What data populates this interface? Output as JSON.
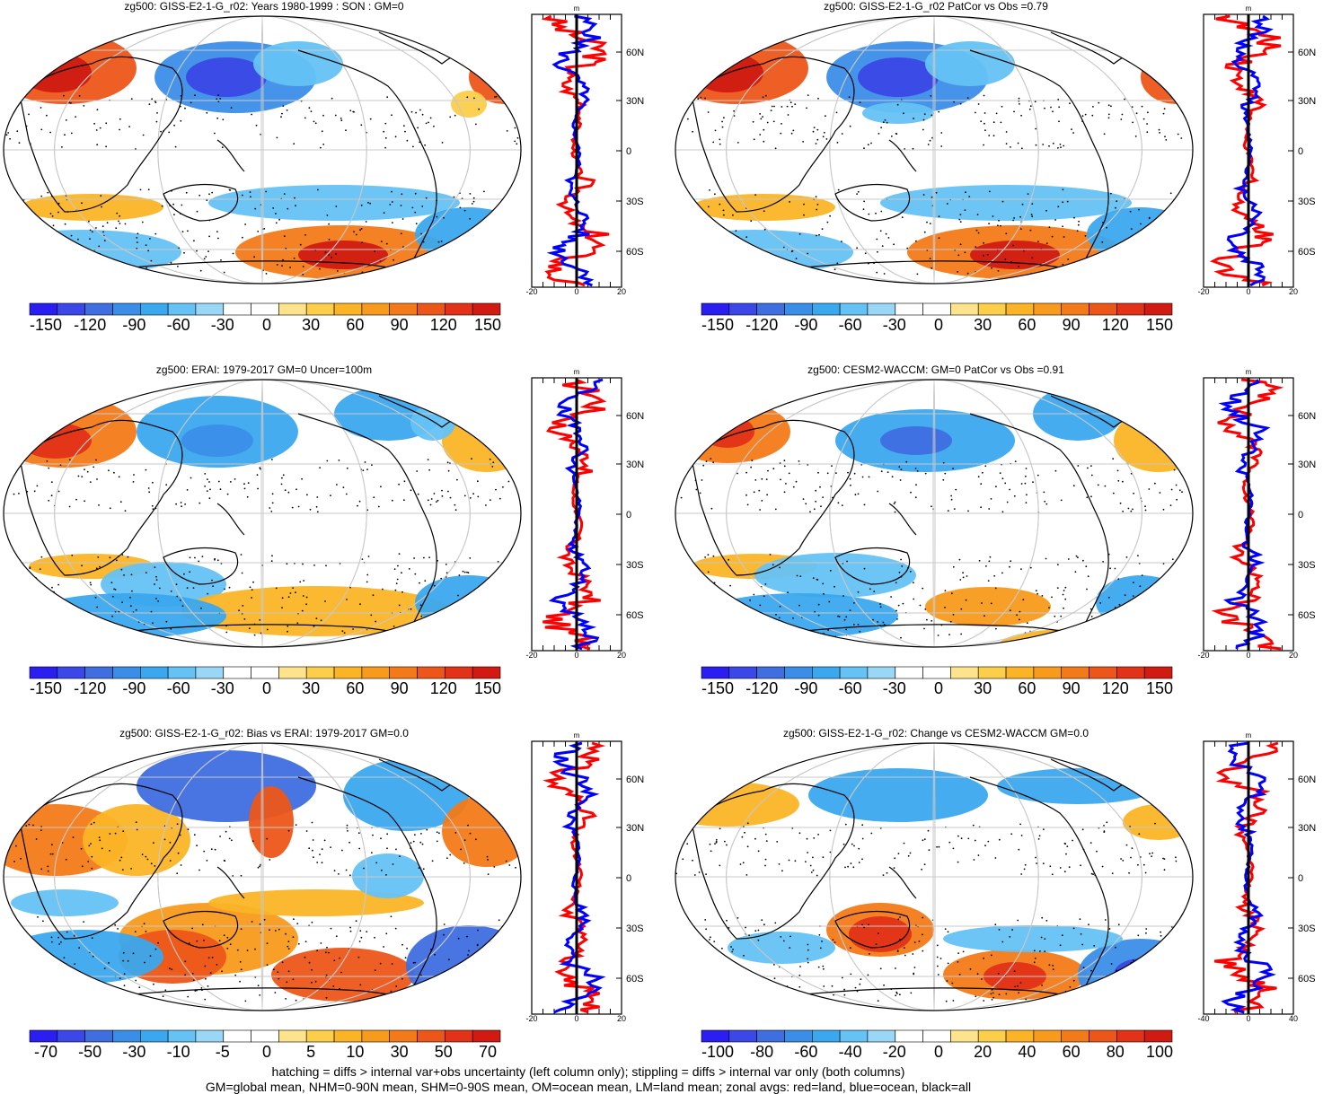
{
  "panels": [
    {
      "title": "zg500: GISS-E2-1-G_r02: Years 1980-1999 : SON : GM=0",
      "colorbar": [
        "-150",
        "-120",
        "-90",
        "-60",
        "-30",
        "0",
        "30",
        "60",
        "90",
        "120",
        "150"
      ],
      "profile_ticks": [
        "-20",
        "0",
        "20"
      ],
      "lat_labels": [
        "60N",
        "30N",
        "0",
        "30S",
        "60S"
      ],
      "unit": "m"
    },
    {
      "title": "zg500: GISS-E2-1-G_r02 PatCor vs Obs =0.79",
      "colorbar": [
        "-150",
        "-120",
        "-90",
        "-60",
        "-30",
        "0",
        "30",
        "60",
        "90",
        "120",
        "150"
      ],
      "profile_ticks": [
        "-20",
        "0",
        "20"
      ],
      "lat_labels": [
        "60N",
        "30N",
        "0",
        "30S",
        "60S"
      ],
      "unit": "m"
    },
    {
      "title": "zg500: ERAI: 1979-2017 GM=0 Uncer=100m",
      "colorbar": [
        "-150",
        "-120",
        "-90",
        "-60",
        "-30",
        "0",
        "30",
        "60",
        "90",
        "120",
        "150"
      ],
      "profile_ticks": [
        "-20",
        "0",
        "20"
      ],
      "lat_labels": [
        "60N",
        "30N",
        "0",
        "30S",
        "60S"
      ],
      "unit": "m"
    },
    {
      "title": "zg500: CESM2-WACCM: GM=0 PatCor vs Obs =0.91",
      "colorbar": [
        "-150",
        "-120",
        "-90",
        "-60",
        "-30",
        "0",
        "30",
        "60",
        "90",
        "120",
        "150"
      ],
      "profile_ticks": [
        "-20",
        "0",
        "20"
      ],
      "lat_labels": [
        "60N",
        "30N",
        "0",
        "30S",
        "60S"
      ],
      "unit": "m"
    },
    {
      "title": "zg500: GISS-E2-1-G_r02: Bias vs ERAI: 1979-2017  GM=0.0",
      "colorbar": [
        "-70",
        "-50",
        "-30",
        "-10",
        "-5",
        "0",
        "5",
        "10",
        "30",
        "50",
        "70"
      ],
      "profile_ticks": [
        "-20",
        "0",
        "20"
      ],
      "lat_labels": [
        "60N",
        "30N",
        "0",
        "30S",
        "60S"
      ],
      "unit": "m"
    },
    {
      "title": "zg500: GISS-E2-1-G_r02: Change vs CESM2-WACCM GM=0.0",
      "colorbar": [
        "-100",
        "-80",
        "-60",
        "-40",
        "-20",
        "0",
        "20",
        "40",
        "60",
        "80",
        "100"
      ],
      "profile_ticks": [
        "-40",
        "0",
        "40"
      ],
      "lat_labels": [
        "60N",
        "30N",
        "0",
        "30S",
        "60S"
      ],
      "unit": "m"
    }
  ],
  "colors": {
    "palette": [
      "#2a1ef0",
      "#3b47e6",
      "#3f6ee0",
      "#3b8ee8",
      "#3aa8ee",
      "#64c2f4",
      "#9ad6f6",
      "#ffffff",
      "#ffffff",
      "#fde48c",
      "#fcce4a",
      "#fbb426",
      "#f89a1c",
      "#f37a18",
      "#ec5618",
      "#e23218",
      "#d01a12"
    ],
    "land_line": "#ff0000",
    "ocean_line": "#0000ff",
    "all_line": "#000000"
  },
  "footer": {
    "line1": "hatching = diffs > internal var+obs uncertainty (left column only); stippling = diffs > internal var only (both columns)",
    "line2": "GM=global mean, NHM=0-90N mean, SHM=0-90S mean, OM=ocean mean, LM=land mean; zonal avgs: red=land, blue=ocean, black=all"
  }
}
